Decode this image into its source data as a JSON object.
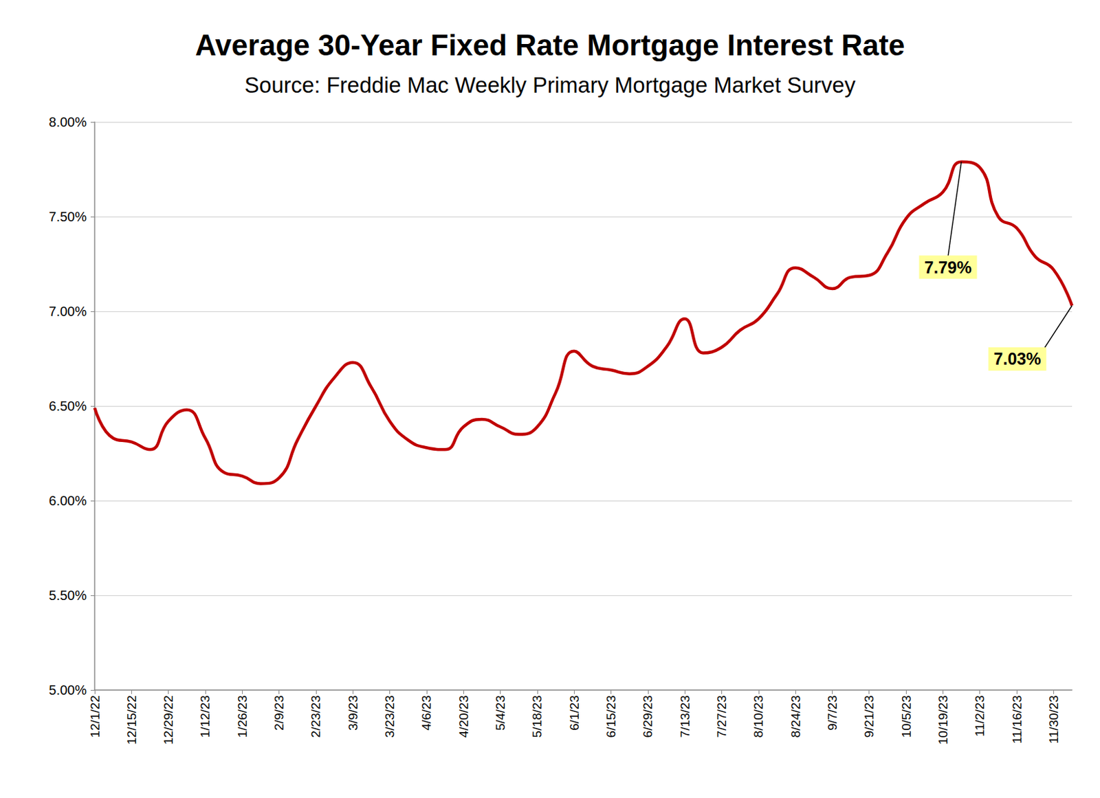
{
  "chart_data": {
    "type": "line",
    "title": "Average 30-Year Fixed Rate Mortgage Interest Rate",
    "subtitle": "Source: Freddie Mac Weekly Primary Mortgage Market Survey",
    "categories": [
      "12/1/22",
      null,
      "12/15/22",
      null,
      "12/29/22",
      null,
      "1/12/23",
      null,
      "1/26/23",
      null,
      "2/9/23",
      null,
      "2/23/23",
      null,
      "3/9/23",
      null,
      "3/23/23",
      null,
      "4/6/23",
      null,
      "4/20/23",
      null,
      "5/4/23",
      null,
      "5/18/23",
      null,
      "6/1/23",
      null,
      "6/15/23",
      null,
      "6/29/23",
      null,
      "7/13/23",
      null,
      "7/27/23",
      null,
      "8/10/23",
      null,
      "8/24/23",
      null,
      "9/7/23",
      null,
      "9/21/23",
      null,
      "10/5/23",
      null,
      "10/19/23",
      null,
      "11/2/23",
      null,
      "11/16/23",
      null,
      "11/30/23",
      null
    ],
    "values": [
      6.49,
      6.33,
      6.31,
      6.27,
      6.42,
      6.48,
      6.33,
      6.15,
      6.13,
      6.09,
      6.12,
      6.32,
      6.5,
      6.65,
      6.73,
      6.6,
      6.42,
      6.32,
      6.28,
      6.27,
      6.39,
      6.43,
      6.39,
      6.35,
      6.39,
      6.57,
      6.79,
      6.71,
      6.69,
      6.67,
      6.71,
      6.81,
      6.96,
      6.78,
      6.81,
      6.9,
      6.96,
      7.09,
      7.23,
      7.18,
      7.12,
      7.18,
      7.19,
      7.31,
      7.49,
      7.57,
      7.63,
      7.79,
      7.76,
      7.5,
      7.44,
      7.29,
      7.22,
      7.03
    ],
    "color": "#c00000",
    "ylim": [
      5,
      8
    ],
    "yticks": [
      {
        "value": 5,
        "label": "5.00%"
      },
      {
        "value": 5.5,
        "label": "5.50%"
      },
      {
        "value": 6,
        "label": "6.00%"
      },
      {
        "value": 6.5,
        "label": "6.50%"
      },
      {
        "value": 7,
        "label": "7.00%"
      },
      {
        "value": 7.5,
        "label": "7.50%"
      },
      {
        "value": 8,
        "label": "8.00%"
      }
    ],
    "grid": true,
    "annotations": [
      {
        "text": "7.79%",
        "value": 7.79
      },
      {
        "text": "7.03%",
        "value": 7.03
      }
    ]
  }
}
